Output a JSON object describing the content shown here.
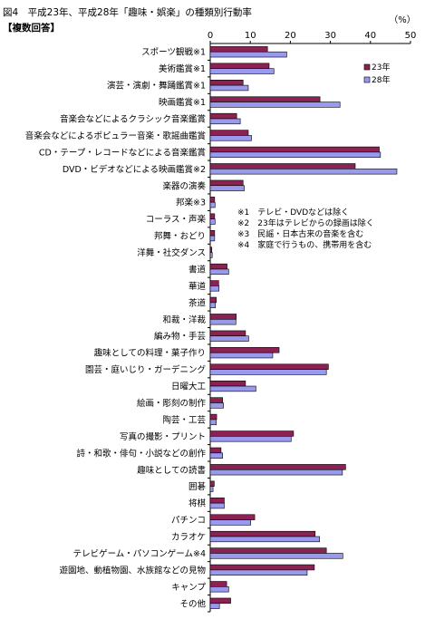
{
  "chart_data": {
    "type": "bar",
    "orientation": "horizontal",
    "title": "図4　平成23年、平成28年「趣味・娯楽」の種類別行動率",
    "subtitle": "【複数回答】",
    "unit_label": "（%）",
    "xlim": [
      0,
      50
    ],
    "x_ticks": [
      0,
      10,
      20,
      30,
      40,
      50
    ],
    "grid": false,
    "legend_position": "top-right",
    "categories": [
      "スポーツ観戦※1",
      "美術鑑賞※1",
      "演芸・演劇・舞踊鑑賞※1",
      "映画鑑賞※1",
      "音楽会などによるクラシック音楽鑑賞",
      "音楽会などによるポピュラー音楽・歌謡曲鑑賞",
      "CD・テープ・レコードなどによる音楽鑑賞",
      "DVD・ビデオなどによる映画鑑賞※2",
      "楽器の演奏",
      "邦楽※3",
      "コーラス・声楽",
      "邦舞・おどり",
      "洋舞・社交ダンス",
      "書道",
      "華道",
      "茶道",
      "和裁・洋裁",
      "編み物・手芸",
      "趣味としての料理・菓子作り",
      "園芸・庭いじり・ガーデニング",
      "日曜大工",
      "絵画・彫刻の制作",
      "陶芸・工芸",
      "写真の撮影・プリント",
      "詩・和歌・俳句・小説などの創作",
      "趣味としての読書",
      "囲碁",
      "将棋",
      "パチンコ",
      "カラオケ",
      "テレビゲーム・パソコンゲーム※4",
      "遊園地、動植物園、水族館などの見物",
      "キャンプ",
      "その他"
    ],
    "series": [
      {
        "name": "23年",
        "color": "#8b2252",
        "values": [
          14.3,
          14.7,
          8.2,
          27.4,
          6.6,
          9.5,
          42.2,
          36.2,
          8.2,
          1.1,
          1.1,
          1.1,
          0.4,
          4.2,
          2.1,
          1.5,
          6.5,
          8.8,
          17.2,
          29.5,
          8.8,
          3.1,
          1.6,
          20.8,
          2.7,
          33.8,
          1.0,
          3.5,
          11.1,
          26.2,
          29.0,
          26.0,
          4.1,
          5.1
        ]
      },
      {
        "name": "28年",
        "color": "#9999ee",
        "values": [
          19.1,
          15.9,
          9.5,
          32.4,
          7.5,
          10.3,
          42.5,
          46.6,
          8.5,
          1.2,
          1.2,
          1.1,
          0.5,
          4.6,
          2.2,
          1.3,
          6.4,
          9.6,
          15.6,
          29.0,
          11.4,
          3.3,
          1.5,
          20.2,
          3.1,
          33.0,
          0.7,
          3.5,
          10.1,
          27.3,
          33.1,
          24.2,
          4.6,
          2.3
        ]
      }
    ]
  },
  "notes": [
    "※1　テレビ・DVDなどは除く",
    "※2　23年はテレビからの録画は除く",
    "※3　民謡・日本古来の音楽を含む",
    "※4　家庭で行うもの、携帯用を含む"
  ]
}
